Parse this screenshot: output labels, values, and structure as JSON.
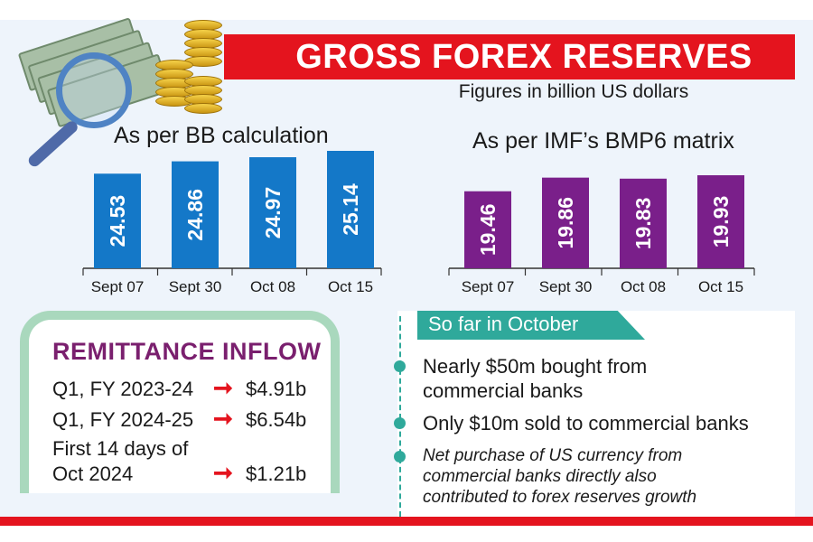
{
  "header": {
    "title": "GROSS FOREX RESERVES",
    "subtitle": "Figures in billion US dollars",
    "colors": {
      "banner": "#e4141e",
      "bb_bars": "#1478c8",
      "imf_bars": "#7a1f8a",
      "accent_teal": "#2fa99b"
    }
  },
  "chart_data": [
    {
      "type": "bar",
      "title": "As per BB calculation",
      "categories": [
        "Sept 07",
        "Sept 30",
        "Oct 08",
        "Oct 15"
      ],
      "values": [
        24.53,
        24.86,
        24.97,
        25.14
      ],
      "value_labels": [
        "24.53",
        "24.86",
        "24.97",
        "25.14"
      ],
      "unit": "billion US dollars",
      "color": "#1478c8"
    },
    {
      "type": "bar",
      "title": "As per IMF’s BMP6 matrix",
      "categories": [
        "Sept 07",
        "Sept 30",
        "Oct 08",
        "Oct 15"
      ],
      "values": [
        19.46,
        19.86,
        19.83,
        19.93
      ],
      "value_labels": [
        "19.46",
        "19.86",
        "19.83",
        "19.93"
      ],
      "unit": "billion US dollars",
      "color": "#7a1f8a"
    }
  ],
  "remittance": {
    "title": "REMITTANCE INFLOW",
    "rows": [
      {
        "label": "Q1, FY 2023-24",
        "value": "$4.91b"
      },
      {
        "label": "Q1, FY 2024-25",
        "value": "$6.54b"
      },
      {
        "label_line1": "First 14 days of",
        "label_line2": "Oct 2024",
        "value": "$1.21b"
      }
    ]
  },
  "october": {
    "heading": "So far in October",
    "bullets": [
      {
        "line1": "Nearly $50m bought from",
        "line2": "commercial banks"
      },
      {
        "line1": "Only $10m sold to commercial banks"
      },
      {
        "line1": "Net purchase of US currency from",
        "line2": "commercial banks directly also",
        "line3": "contributed to forex reserves growth"
      }
    ]
  },
  "icons": [
    "money-stack-icon",
    "gold-coins-icon",
    "magnifying-glass-icon",
    "arrow-right-icon"
  ]
}
